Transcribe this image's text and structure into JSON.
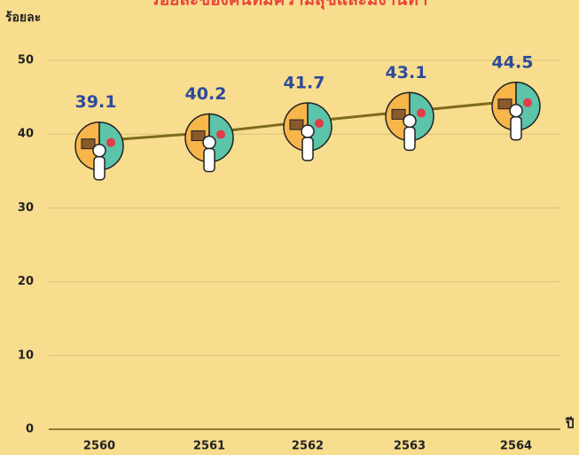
{
  "chart_data": {
    "type": "line",
    "title": "ร้อยละของคนที่มีความสุขและมีงานทำ",
    "y_label": "ร้อยละ",
    "x_label": "ปี",
    "categories": [
      "2560",
      "2561",
      "2562",
      "2563",
      "2564"
    ],
    "series": [
      {
        "name": "ร้อยละ",
        "color": "#7d6b1c",
        "values": [
          39.1,
          40.2,
          41.7,
          43.1,
          44.5
        ]
      }
    ],
    "ylim": [
      0,
      50
    ],
    "yticks": [
      0,
      10,
      20,
      30,
      40,
      50
    ],
    "grid": true
  }
}
